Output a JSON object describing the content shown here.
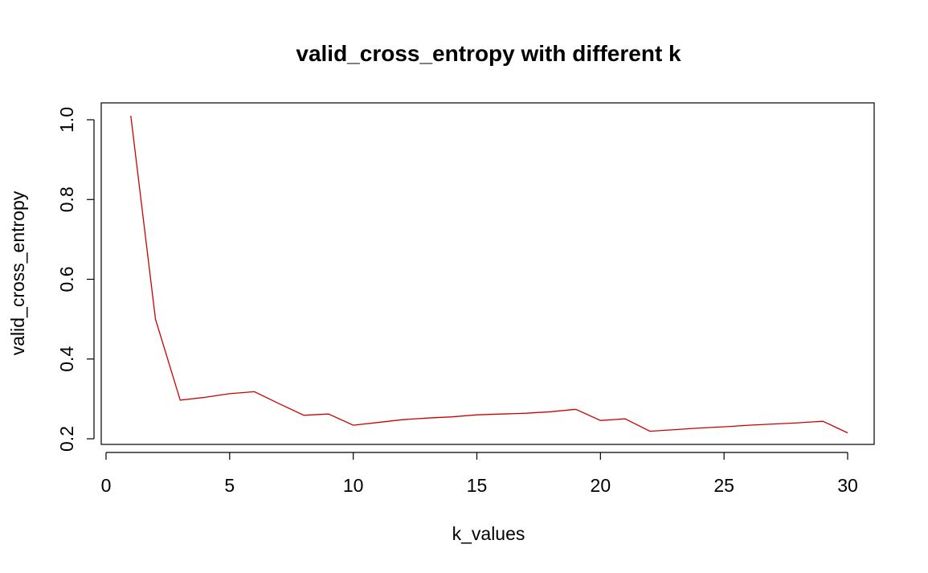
{
  "chart_data": {
    "type": "line",
    "title": "valid_cross_entropy with different k",
    "xlabel": "k_values",
    "ylabel": "valid_cross_entropy",
    "xlim": [
      0,
      30
    ],
    "ylim": [
      0.2,
      1.0
    ],
    "xticks": [
      0,
      5,
      10,
      15,
      20,
      25,
      30
    ],
    "xtick_labels": [
      "0",
      "5",
      "10",
      "15",
      "20",
      "25",
      "30"
    ],
    "yticks": [
      0.2,
      0.4,
      0.6,
      0.8,
      1.0
    ],
    "ytick_labels": [
      "0.2",
      "0.4",
      "0.6",
      "0.8",
      "1.0"
    ],
    "grid": false,
    "series": [
      {
        "color": "#cc0000",
        "x": [
          1,
          2,
          3,
          4,
          5,
          6,
          7,
          8,
          9,
          10,
          11,
          12,
          13,
          14,
          15,
          16,
          17,
          18,
          19,
          20,
          21,
          22,
          23,
          24,
          25,
          26,
          27,
          28,
          29,
          30
        ],
        "y": [
          1.01,
          0.5,
          0.297,
          0.304,
          0.313,
          0.318,
          0.288,
          0.259,
          0.262,
          0.234,
          0.241,
          0.248,
          0.252,
          0.255,
          0.26,
          0.262,
          0.264,
          0.268,
          0.274,
          0.246,
          0.25,
          0.219,
          0.223,
          0.227,
          0.23,
          0.234,
          0.237,
          0.24,
          0.244,
          0.215
        ]
      }
    ]
  }
}
